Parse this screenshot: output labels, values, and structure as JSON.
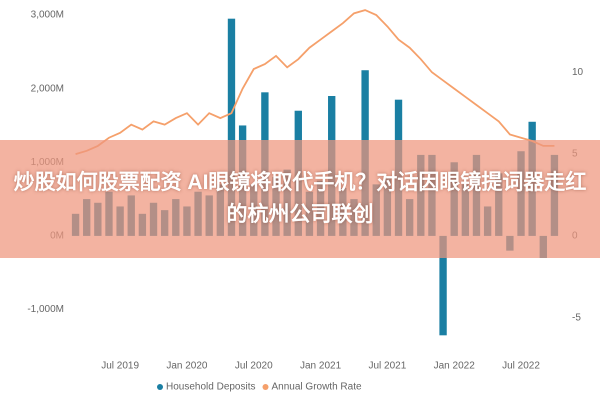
{
  "overlay_title": "炒股如何股票配资 AI眼镜将取代手机？对话因眼镜提词器走红的杭州公司联创",
  "chart_data": {
    "type": "bar_line",
    "categories": [
      null,
      null,
      null,
      null,
      "Jul 2019",
      null,
      null,
      null,
      null,
      null,
      "Jan 2020",
      null,
      null,
      null,
      null,
      null,
      "Jul 2020",
      null,
      null,
      null,
      null,
      null,
      "Jan 2021",
      null,
      null,
      null,
      null,
      null,
      "Jul 2021",
      null,
      null,
      null,
      null,
      null,
      "Jan 2022",
      null,
      null,
      null,
      null,
      null,
      "Jul 2022",
      null,
      null,
      null
    ],
    "series": [
      {
        "name": "Household Deposits",
        "color": "#1a7fa3",
        "kind": "bar",
        "values": [
          300,
          500,
          450,
          600,
          400,
          550,
          300,
          450,
          350,
          500,
          400,
          600,
          550,
          700,
          2950,
          1500,
          700,
          1950,
          800,
          900,
          1700,
          600,
          750,
          1900,
          650,
          500,
          2250,
          700,
          800,
          1850,
          500,
          1100,
          1100,
          -1350,
          1000,
          700,
          1100,
          400,
          850,
          -200,
          1150,
          1550,
          -300,
          1100
        ]
      },
      {
        "name": "Annual Growth Rate",
        "color": "#f5a06b",
        "kind": "line",
        "axis": "y2",
        "values": [
          5,
          5.2,
          5.5,
          6,
          6.3,
          6.8,
          6.5,
          7,
          6.8,
          7.2,
          7.5,
          6.8,
          7.5,
          7.2,
          7.5,
          9,
          10.2,
          10.5,
          11,
          10.3,
          10.8,
          11.5,
          12,
          12.5,
          13,
          13.6,
          13.8,
          13.5,
          12.8,
          12,
          11.5,
          10.8,
          10,
          9.5,
          9,
          8.5,
          8,
          7.5,
          7,
          6.2,
          6,
          5.8,
          5.5,
          5.5
        ]
      }
    ],
    "ylim": [
      -1400,
      3000
    ],
    "yticks": [
      {
        "value": 3000,
        "label": "3,000M"
      },
      {
        "value": 2000,
        "label": "2,000M"
      },
      {
        "value": 1000,
        "label": "1,000M"
      },
      {
        "value": 0,
        "label": "0M"
      },
      {
        "value": -1000,
        "label": "-1,000M"
      }
    ],
    "y2lim": [
      -6.3,
      13.5
    ],
    "y2ticks": [
      10,
      5,
      0,
      -5
    ],
    "legend": "bottom"
  }
}
